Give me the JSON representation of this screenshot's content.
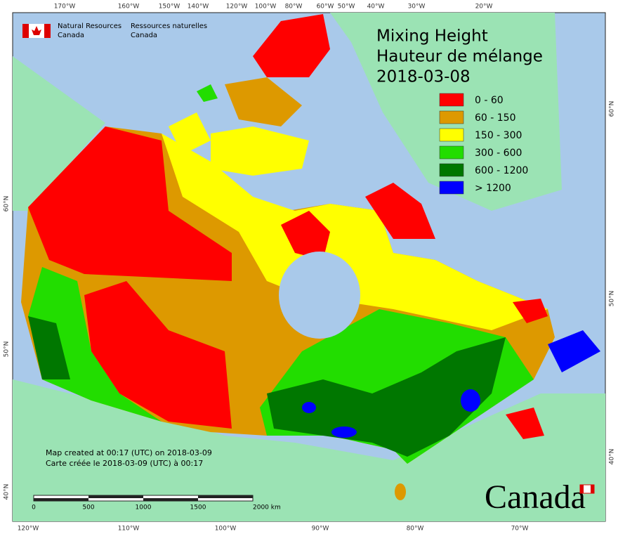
{
  "header": {
    "logo_en": [
      "Natural Resources",
      "Canada"
    ],
    "logo_fr": [
      "Ressources naturelles",
      "Canada"
    ]
  },
  "title": [
    "Mixing Height",
    "Hauteur de mélange",
    "2018-03-08"
  ],
  "legend": [
    {
      "label": "0 - 60",
      "color": "#ff0000"
    },
    {
      "label": "60 - 150",
      "color": "#dd9900"
    },
    {
      "label": "150 - 300",
      "color": "#ffff00"
    },
    {
      "label": "300 - 600",
      "color": "#22dd00"
    },
    {
      "label": "600 - 1200",
      "color": "#007700"
    },
    {
      "label": "> 1200",
      "color": "#0000ff"
    }
  ],
  "graticule": {
    "top": [
      "170°W",
      "160°W",
      "150°W",
      "140°W",
      "120°W",
      "100°W",
      "80°W",
      "60°W",
      "50°W",
      "40°W",
      "30°W",
      "20°W"
    ],
    "bottom": [
      "120°W",
      "110°W",
      "100°W",
      "90°W",
      "80°W",
      "70°W"
    ],
    "left": [
      "60°N",
      "50°N",
      "40°N"
    ],
    "right": [
      "60°N",
      "50°N",
      "40°N"
    ]
  },
  "credits": [
    "Map created at 00:17 (UTC) on 2018-03-09",
    "Carte créée le 2018-03-09 (UTC) à 00:17"
  ],
  "scale_bar": [
    "0",
    "500",
    "1000",
    "1500",
    "2000 km"
  ],
  "wordmark": "Canada"
}
